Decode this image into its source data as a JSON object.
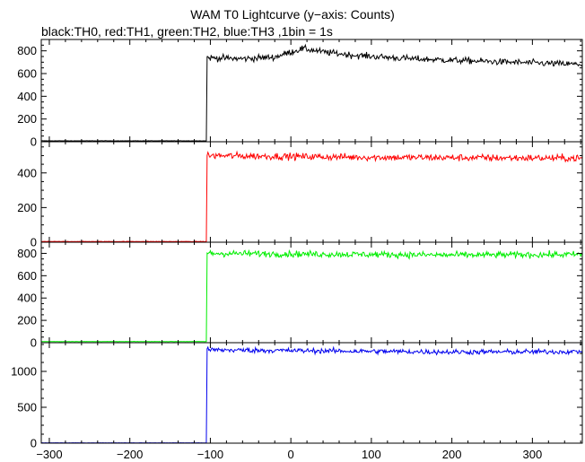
{
  "title": "WAM T0 Lightcurve (y−axis: Counts)",
  "subtitle": "black:TH0, red:TH1, green:TH2, blue:TH3 ,1bin = 1s",
  "chart_data": {
    "type": "line",
    "x_range": [
      -310,
      362
    ],
    "x_ticks": [
      -300,
      -200,
      -100,
      0,
      100,
      200,
      300
    ],
    "x_tick_labels": [
      "−300",
      "−200",
      "−100",
      "0",
      "100",
      "200",
      "300"
    ],
    "panels": [
      {
        "series": "TH0",
        "color": "#000000",
        "ylim": [
          0,
          900
        ],
        "y_ticks": [
          0,
          200,
          400,
          600,
          800
        ],
        "y_tick_labels": [
          "0",
          "200",
          "400",
          "600",
          "800"
        ],
        "baseline": 8,
        "onset_x": -105,
        "profile": [
          [
            -105,
            740
          ],
          [
            -60,
            730
          ],
          [
            -20,
            745
          ],
          [
            0,
            790
          ],
          [
            15,
            820
          ],
          [
            40,
            790
          ],
          [
            80,
            760
          ],
          [
            150,
            730
          ],
          [
            250,
            705
          ],
          [
            362,
            680
          ]
        ],
        "noise": 28
      },
      {
        "series": "TH1",
        "color": "#ff0000",
        "ylim": [
          0,
          580
        ],
        "y_ticks": [
          0,
          200,
          400
        ],
        "y_tick_labels": [
          "0",
          "200",
          "400"
        ],
        "baseline": 4,
        "onset_x": -105,
        "profile": [
          [
            -105,
            500
          ],
          [
            0,
            495
          ],
          [
            100,
            490
          ],
          [
            200,
            488
          ],
          [
            362,
            485
          ]
        ],
        "noise": 20
      },
      {
        "series": "TH2",
        "color": "#00ee00",
        "ylim": [
          0,
          900
        ],
        "y_ticks": [
          0,
          200,
          400,
          600,
          800
        ],
        "y_tick_labels": [
          "0",
          "200",
          "400",
          "600",
          "800"
        ],
        "baseline": 10,
        "onset_x": -105,
        "profile": [
          [
            -105,
            800
          ],
          [
            0,
            795
          ],
          [
            100,
            790
          ],
          [
            200,
            785
          ],
          [
            362,
            790
          ]
        ],
        "noise": 28
      },
      {
        "series": "TH3",
        "color": "#0000ee",
        "ylim": [
          0,
          1400
        ],
        "y_ticks": [
          0,
          500,
          1000
        ],
        "y_tick_labels": [
          "0",
          "500",
          "1000"
        ],
        "baseline": 4,
        "onset_x": -105,
        "profile": [
          [
            -105,
            1300
          ],
          [
            0,
            1290
          ],
          [
            100,
            1280
          ],
          [
            200,
            1270
          ],
          [
            362,
            1275
          ]
        ],
        "noise": 35
      }
    ]
  }
}
